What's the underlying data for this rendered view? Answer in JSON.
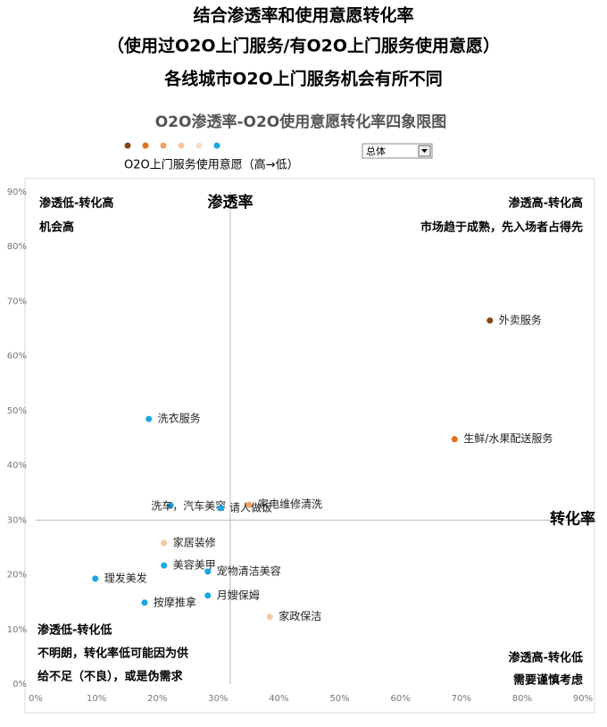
{
  "chart_data": {
    "type": "scatter",
    "title": [
      "结合渗透率和使用意愿转化率",
      "（使用过O2O上门服务/有O2O上门服务使用意愿）",
      "各线城市O2O上门服务机会有所不同"
    ],
    "subtitle": "O2O渗透率-O2O使用意愿转化率四象限图",
    "legend_colors": [
      "#8b4513",
      "#e0701e",
      "#f0a060",
      "#f5c8a0",
      "#fbdcc4",
      "#1aa6e0"
    ],
    "legend_label": "O2O上门服务使用意愿（高→低）",
    "dropdown": "总体",
    "xlabel": "转化率",
    "ylabel": "渗透率",
    "xlim": [
      0,
      90
    ],
    "ylim": [
      0,
      90
    ],
    "xticks": [
      {
        "value": 0,
        "label": "0%"
      },
      {
        "value": 10,
        "label": "10%"
      },
      {
        "value": 20,
        "label": "20%"
      },
      {
        "value": 30,
        "label": "30%"
      },
      {
        "value": 40,
        "label": "40%"
      },
      {
        "value": 50,
        "label": "50%"
      },
      {
        "value": 60,
        "label": "60%"
      },
      {
        "value": 70,
        "label": "70%"
      },
      {
        "value": 80,
        "label": "80%"
      },
      {
        "value": 90,
        "label": "90%"
      }
    ],
    "yticks": [
      {
        "value": 0,
        "label": "0%"
      },
      {
        "value": 10,
        "label": "10%"
      },
      {
        "value": 20,
        "label": "20%"
      },
      {
        "value": 30,
        "label": "30%"
      },
      {
        "value": 40,
        "label": "40%"
      },
      {
        "value": 50,
        "label": "50%"
      },
      {
        "value": 60,
        "label": "60%"
      },
      {
        "value": 70,
        "label": "70%"
      },
      {
        "value": 80,
        "label": "80%"
      },
      {
        "value": 90,
        "label": "90%"
      }
    ],
    "quadrant_x": 32,
    "quadrant_y": 30,
    "labels": [
      "外卖服务",
      "生鲜/水果配送服务",
      "洗衣服务",
      "洗车，汽车美容",
      "请人做饭",
      "家电维修清洗",
      "家居装修",
      "美容美甲",
      "宠物清洁美容",
      "理发美发",
      "月嫂保姆",
      "按摩推拿",
      "家政保洁"
    ],
    "x": [
      74.7,
      68.9,
      18.6,
      22.2,
      30.4,
      35.1,
      21.1,
      21.1,
      28.3,
      9.8,
      28.3,
      17.9,
      38.5
    ],
    "y": [
      66.5,
      44.8,
      48.5,
      32.7,
      32.2,
      32.8,
      25.8,
      21.7,
      20.6,
      19.3,
      16.2,
      14.9,
      12.3
    ],
    "colors": [
      "#8b4513",
      "#e0701e",
      "#1aa6e0",
      "#1aa6e0",
      "#1aa6e0",
      "#f0a060",
      "#f5c8a0",
      "#1aa6e0",
      "#1aa6e0",
      "#1aa6e0",
      "#1aa6e0",
      "#1aa6e0",
      "#f5c8a0"
    ],
    "quadrant_notes": [
      {
        "corner": "top-left",
        "lines": [
          "渗透低-转化高",
          "机会高"
        ]
      },
      {
        "corner": "top-right",
        "lines": [
          "渗透高-转化高",
          "市场趋于成熟，先入场者占得先"
        ]
      },
      {
        "corner": "bottom-left",
        "lines": [
          "渗透低-转化低",
          "不明朗，转化率低可能因为供",
          "给不足（不良），或是伪需求"
        ]
      },
      {
        "corner": "bottom-right",
        "lines": [
          "渗透高-转化低",
          "需要谨慎考虑"
        ]
      }
    ]
  }
}
